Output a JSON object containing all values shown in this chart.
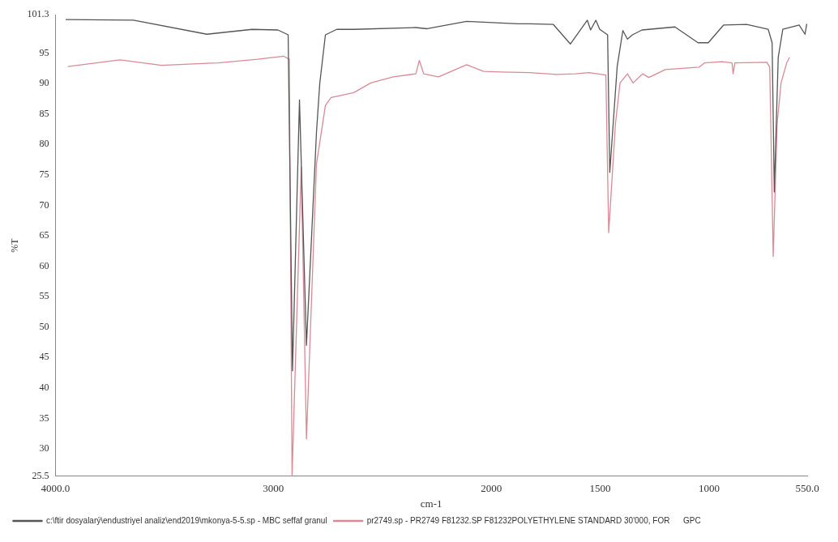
{
  "chart_data": {
    "type": "line",
    "xlabel": "cm-1",
    "ylabel": "%T",
    "xlim": [
      4000,
      550
    ],
    "xticks": [
      {
        "value": 4000,
        "label": "4000.0"
      },
      3000,
      2000,
      1500,
      1000,
      {
        "value": 550,
        "label": "550.0"
      }
    ],
    "ylim": [
      25.5,
      101.3
    ],
    "yticks": [
      {
        "value": 25.5,
        "label": "25.5"
      },
      30,
      35,
      40,
      45,
      50,
      55,
      60,
      65,
      70,
      75,
      80,
      85,
      90,
      95,
      {
        "value": 101.3,
        "label": "101.3"
      }
    ],
    "grid": false,
    "legend": "bottom",
    "marker": "none",
    "line_style": "solid",
    "series": [
      {
        "name": "c:\\ftir dosyalarý\\endustriyel analiz\\end2019\\mkonya-5-5.sp - MBC seffaf granul",
        "color": "#555555",
        "x": [
          3953,
          3642,
          3305,
          3098,
          2979,
          2932,
          2912,
          2880,
          2848,
          2802,
          2787,
          2761,
          2709,
          2631,
          2346,
          2294,
          2113,
          1876,
          1824,
          1715,
          1637,
          1559,
          1544,
          1520,
          1502,
          1466,
          1456,
          1422,
          1396,
          1375,
          1352,
          1308,
          1157,
          1051,
          1004,
          934,
          828,
          729,
          711,
          701,
          683,
          662,
          587,
          560,
          552
        ],
        "values": [
          100.5,
          100.4,
          98.1,
          98.9,
          98.8,
          98.0,
          42.8,
          87.3,
          47.0,
          82.0,
          90.0,
          98.0,
          98.9,
          98.9,
          99.2,
          99.0,
          100.2,
          99.8,
          99.8,
          99.7,
          96.5,
          100.4,
          98.8,
          100.4,
          98.9,
          98.0,
          75.4,
          92.8,
          98.7,
          97.3,
          98.0,
          98.8,
          99.3,
          96.7,
          96.7,
          99.6,
          99.7,
          98.9,
          96.7,
          72.2,
          94.3,
          98.9,
          99.6,
          98.1,
          99.8
        ]
      },
      {
        "name": "pr2749.sp - PR2749 F81232.SP F81232POLYETHYLENE STANDARD 30'000, FOR      GPC",
        "color": "#d98a96",
        "x": [
          3943,
          3704,
          3513,
          3253,
          3072,
          2953,
          2927,
          2914,
          2872,
          2848,
          2802,
          2761,
          2735,
          2631,
          2553,
          2450,
          2346,
          2330,
          2310,
          2242,
          2113,
          2035,
          1953,
          1824,
          1699,
          1616,
          1551,
          1474,
          1461,
          1430,
          1409,
          1375,
          1349,
          1305,
          1277,
          1201,
          1046,
          1020,
          942,
          895,
          890,
          882,
          735,
          722,
          706,
          688,
          670,
          644,
          631
        ],
        "values": [
          92.8,
          93.9,
          93.0,
          93.4,
          94.0,
          94.5,
          94.0,
          25.5,
          76.3,
          31.6,
          76.8,
          86.4,
          87.7,
          88.5,
          90.1,
          91.1,
          91.6,
          93.8,
          91.6,
          91.1,
          93.1,
          92.0,
          91.9,
          91.8,
          91.5,
          91.6,
          91.8,
          91.4,
          65.5,
          83.4,
          90.1,
          91.6,
          90.1,
          91.6,
          91.0,
          92.3,
          92.7,
          93.4,
          93.6,
          93.4,
          91.6,
          93.4,
          93.5,
          92.7,
          61.6,
          83.4,
          90.1,
          93.4,
          94.3
        ]
      }
    ]
  }
}
